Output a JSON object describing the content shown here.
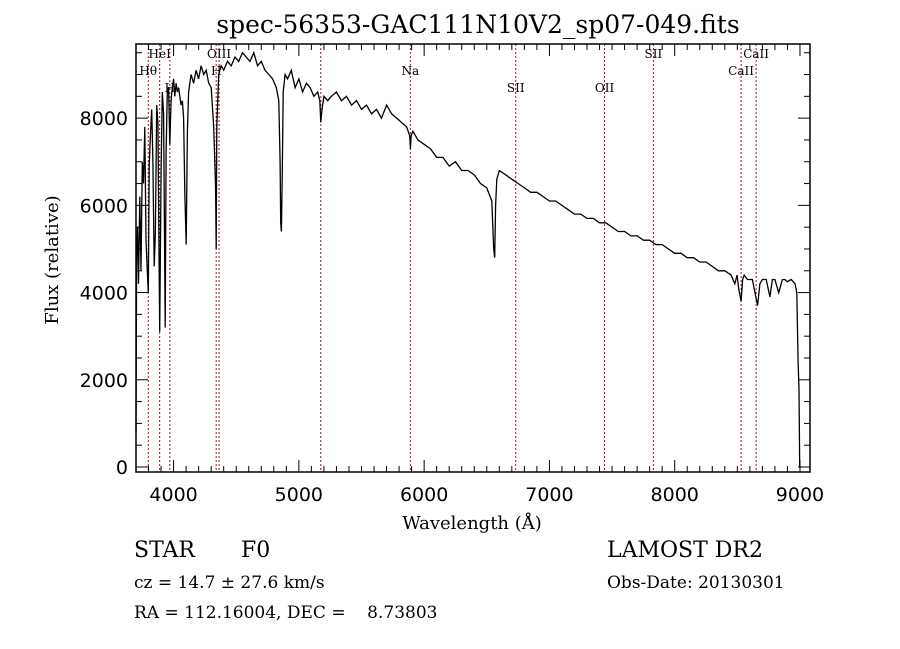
{
  "chart_data": {
    "type": "line",
    "title": "spec-56353-GAC111N10V2_sp07-049.fits",
    "xlabel": "Wavelength (Å)",
    "ylabel": "Flux (relative)",
    "xlim": [
      3700,
      9080
    ],
    "ylim": [
      0,
      9700
    ],
    "xticks": [
      4000,
      5000,
      6000,
      7000,
      8000,
      9000
    ],
    "yticks": [
      0,
      2000,
      4000,
      6000,
      8000
    ],
    "xtick_labels": [
      "4000",
      "5000",
      "6000",
      "7000",
      "8000",
      "9000"
    ],
    "ytick_labels": [
      "0",
      "2000",
      "4000",
      "6000",
      "8000"
    ],
    "grid": false,
    "series": [
      {
        "name": "spectrum",
        "color": "#000000",
        "x": [
          3700,
          3705,
          3712,
          3720,
          3730,
          3740,
          3750,
          3760,
          3770,
          3780,
          3790,
          3798,
          3805,
          3815,
          3825,
          3835,
          3845,
          3855,
          3865,
          3875,
          3889,
          3900,
          3910,
          3920,
          3933,
          3940,
          3950,
          3960,
          3970,
          3980,
          3990,
          4000,
          4010,
          4020,
          4030,
          4040,
          4050,
          4060,
          4070,
          4080,
          4090,
          4101,
          4110,
          4120,
          4140,
          4160,
          4180,
          4200,
          4220,
          4240,
          4260,
          4280,
          4300,
          4320,
          4335,
          4340,
          4345,
          4360,
          4380,
          4400,
          4430,
          4460,
          4490,
          4520,
          4550,
          4580,
          4610,
          4640,
          4670,
          4700,
          4730,
          4760,
          4790,
          4820,
          4840,
          4850,
          4855,
          4861,
          4868,
          4875,
          4890,
          4910,
          4940,
          4970,
          5000,
          5030,
          5060,
          5090,
          5120,
          5150,
          5167,
          5175,
          5185,
          5200,
          5230,
          5260,
          5300,
          5340,
          5380,
          5420,
          5460,
          5500,
          5540,
          5580,
          5620,
          5660,
          5700,
          5740,
          5780,
          5820,
          5860,
          5885,
          5890,
          5896,
          5910,
          5950,
          6000,
          6050,
          6100,
          6150,
          6200,
          6250,
          6300,
          6350,
          6400,
          6450,
          6500,
          6540,
          6555,
          6563,
          6570,
          6580,
          6600,
          6650,
          6700,
          6750,
          6800,
          6850,
          6900,
          6950,
          7000,
          7050,
          7100,
          7150,
          7200,
          7250,
          7300,
          7350,
          7400,
          7450,
          7500,
          7550,
          7600,
          7650,
          7700,
          7750,
          7800,
          7850,
          7900,
          7950,
          8000,
          8050,
          8100,
          8150,
          8200,
          8250,
          8300,
          8350,
          8400,
          8450,
          8480,
          8498,
          8510,
          8530,
          8542,
          8555,
          8580,
          8620,
          8662,
          8680,
          8700,
          8730,
          8760,
          8780,
          8800,
          8830,
          8860,
          8880,
          8900,
          8930,
          8960,
          8975,
          8985,
          8992,
          8998,
          9005,
          9010
        ],
        "y": [
          800,
          4800,
          5500,
          4200,
          6200,
          4500,
          7000,
          6500,
          7800,
          5200,
          4500,
          4000,
          6900,
          7600,
          8200,
          7000,
          4600,
          5400,
          8300,
          7900,
          3100,
          6800,
          8600,
          8100,
          3200,
          7200,
          8600,
          8700,
          7400,
          8400,
          8700,
          8900,
          8500,
          8800,
          8600,
          8700,
          8500,
          8300,
          8400,
          8000,
          6200,
          5100,
          7700,
          8600,
          9000,
          8800,
          9100,
          8900,
          9200,
          9000,
          9100,
          8800,
          8700,
          7800,
          6400,
          5000,
          7800,
          9000,
          9200,
          9100,
          9300,
          9200,
          9400,
          9300,
          9500,
          9400,
          9300,
          9500,
          9200,
          9300,
          9100,
          9000,
          8900,
          8700,
          8400,
          7000,
          5600,
          5400,
          6800,
          8600,
          9000,
          8900,
          9100,
          8700,
          8900,
          8600,
          8800,
          8700,
          8500,
          8600,
          8400,
          7900,
          8200,
          8500,
          8400,
          8500,
          8600,
          8400,
          8500,
          8300,
          8400,
          8200,
          8300,
          8100,
          8200,
          8000,
          8300,
          8100,
          8000,
          7900,
          7800,
          7600,
          7300,
          7600,
          7700,
          7500,
          7400,
          7300,
          7100,
          7100,
          6900,
          7000,
          6800,
          6800,
          6700,
          6500,
          6400,
          6100,
          5000,
          4800,
          6000,
          6600,
          6800,
          6700,
          6600,
          6500,
          6400,
          6300,
          6300,
          6200,
          6100,
          6100,
          6000,
          5900,
          5800,
          5800,
          5700,
          5700,
          5600,
          5600,
          5500,
          5400,
          5400,
          5300,
          5300,
          5200,
          5200,
          5100,
          5100,
          5000,
          4900,
          4900,
          4800,
          4800,
          4700,
          4700,
          4600,
          4500,
          4500,
          4400,
          4200,
          4400,
          4100,
          3800,
          4300,
          4400,
          4300,
          4300,
          3700,
          4200,
          4300,
          4300,
          3900,
          4300,
          4300,
          4000,
          4300,
          4300,
          4250,
          4300,
          4200,
          4000,
          2400,
          1800,
          0,
          0,
          0
        ]
      }
    ],
    "spectral_lines": [
      {
        "label": "Hθ",
        "wavelength": 3798
      },
      {
        "label": "HeI",
        "wavelength": 3889
      },
      {
        "label": "H",
        "wavelength": 3970
      },
      {
        "label": "H",
        "wavelength": 4340
      },
      {
        "label": "OIII",
        "wavelength": 4363
      },
      {
        "label": "",
        "wavelength": 5175
      },
      {
        "label": "Na",
        "wavelength": 5890
      },
      {
        "label": "SII",
        "wavelength": 6731
      },
      {
        "label": "OII",
        "wavelength": 7440
      },
      {
        "label": "SII",
        "wavelength": 7830
      },
      {
        "label": "CaII",
        "wavelength": 8530
      },
      {
        "label": "CaII",
        "wavelength": 8650
      }
    ],
    "line_color": "#8b1a1a"
  },
  "info": {
    "object_class": "STAR",
    "subclass": "F0",
    "redshift": "cz = 14.7 ± 27.6 km/s",
    "coords": "RA = 112.16004, DEC =    8.73803",
    "survey": "LAMOST DR2",
    "obs_date": "Obs-Date: 20130301"
  }
}
